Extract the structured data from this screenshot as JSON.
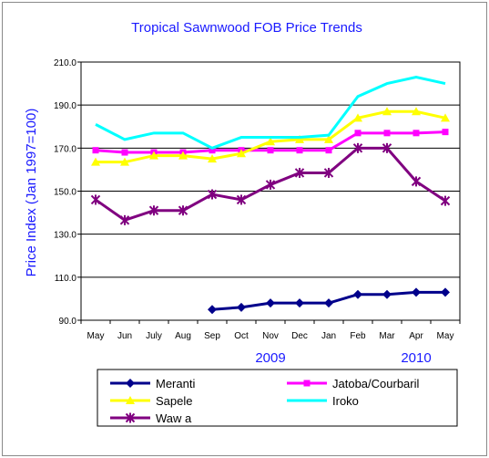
{
  "chart_data": {
    "type": "line",
    "title": "Tropical Sawnwood FOB Price Trends",
    "ylabel": "Price Index (Jan 1997=100)",
    "xlabel": "",
    "categories": [
      "May",
      "Jun",
      "July",
      "Aug",
      "Sep",
      "Oct",
      "Nov",
      "Dec",
      "Jan",
      "Feb",
      "Mar",
      "Apr",
      "May"
    ],
    "year_labels": [
      {
        "text": "2009",
        "category": "Nov"
      },
      {
        "text": "2010",
        "category": "Apr"
      }
    ],
    "ylim": [
      90,
      210
    ],
    "yticks": [
      "90.0",
      "110.0",
      "130.0",
      "150.0",
      "170.0",
      "190.0",
      "210.0"
    ],
    "ytick_values": [
      90,
      110,
      130,
      150,
      170,
      190,
      210
    ],
    "grid": "horizontal",
    "legend_placement": "bottom",
    "series": [
      {
        "name": "Meranti",
        "color": "#00008b",
        "marker": "diamond",
        "values": [
          null,
          null,
          null,
          null,
          95,
          96,
          98,
          98,
          98,
          102,
          102,
          103,
          103
        ]
      },
      {
        "name": "Jatoba/Courbaril",
        "color": "#ff00ff",
        "marker": "square",
        "values": [
          169,
          168,
          168,
          168,
          169,
          169,
          169,
          169,
          169,
          177,
          177,
          177,
          177.5
        ]
      },
      {
        "name": "Sapele",
        "color": "#ffff00",
        "marker": "triangle",
        "values": [
          163.5,
          163.5,
          166.5,
          166.5,
          165,
          167.5,
          173,
          174,
          174,
          184,
          187,
          187,
          184
        ]
      },
      {
        "name": "Iroko",
        "color": "#00ffff",
        "marker": "none",
        "values": [
          181,
          174,
          177,
          177,
          170,
          175,
          175,
          175,
          176,
          194,
          200,
          203,
          200
        ]
      },
      {
        "name": "Wawa",
        "color": "#800080",
        "marker": "star",
        "values": [
          146,
          136.5,
          141,
          141,
          148.5,
          146,
          153,
          158.5,
          158.5,
          170,
          170,
          154.5,
          145.5
        ]
      }
    ],
    "legend_entries": [
      "Meranti",
      "Jatoba/Courbaril",
      "Sapele",
      "Iroko",
      "Waw a"
    ]
  }
}
